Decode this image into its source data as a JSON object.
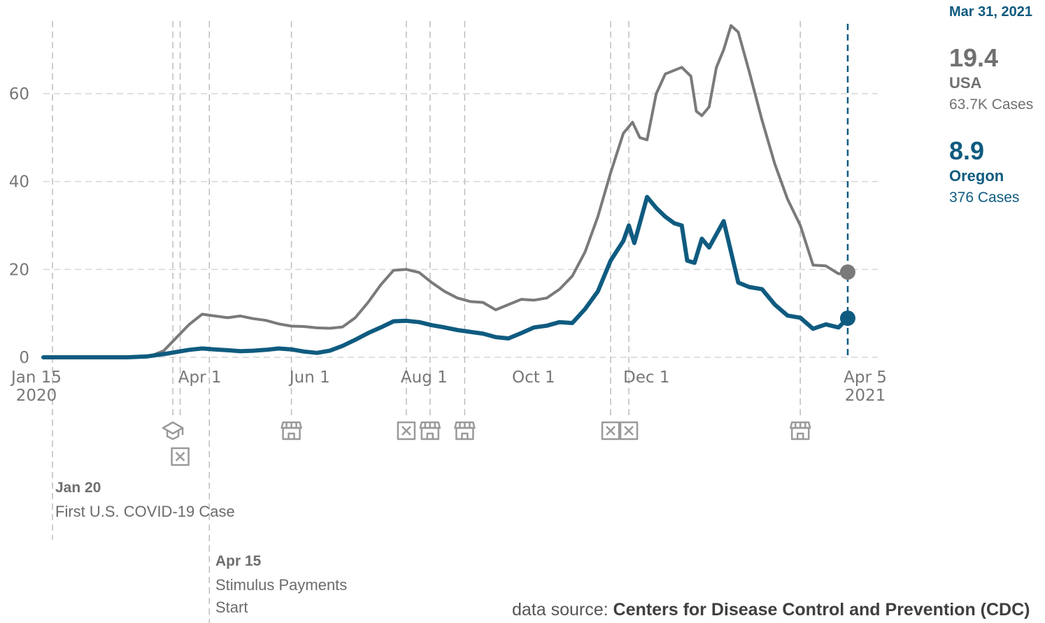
{
  "chart_data": {
    "type": "line",
    "x_axis": {
      "ticks": [
        {
          "date": "2020-01-15",
          "label": "Jan 15",
          "sub": "2020"
        },
        {
          "date": "2020-04-01",
          "label": "Apr 1",
          "sub": ""
        },
        {
          "date": "2020-06-01",
          "label": "Jun 1",
          "sub": ""
        },
        {
          "date": "2020-08-01",
          "label": "Aug 1",
          "sub": ""
        },
        {
          "date": "2020-10-01",
          "label": "Oct 1",
          "sub": ""
        },
        {
          "date": "2020-12-01",
          "label": "Dec 1",
          "sub": ""
        },
        {
          "date": "2021-04-05",
          "label": "Apr 5",
          "sub": "2021"
        }
      ],
      "range": [
        "2020-01-15",
        "2021-04-05"
      ]
    },
    "y_axis": {
      "ticks": [
        0,
        20,
        40,
        60
      ],
      "range": [
        0,
        76
      ]
    },
    "grid": "horizontal dashed",
    "series": [
      {
        "name": "USA",
        "color": "#7a7a7a",
        "points": [
          [
            "2020-01-15",
            0
          ],
          [
            "2020-03-01",
            0
          ],
          [
            "2020-03-14",
            0.3
          ],
          [
            "2020-03-21",
            1.5
          ],
          [
            "2020-03-28",
            4.5
          ],
          [
            "2020-04-04",
            7.5
          ],
          [
            "2020-04-11",
            9.8
          ],
          [
            "2020-04-18",
            9.4
          ],
          [
            "2020-04-25",
            9.0
          ],
          [
            "2020-05-02",
            9.4
          ],
          [
            "2020-05-09",
            8.8
          ],
          [
            "2020-05-16",
            8.4
          ],
          [
            "2020-05-23",
            7.6
          ],
          [
            "2020-05-30",
            7.1
          ],
          [
            "2020-06-06",
            7.0
          ],
          [
            "2020-06-13",
            6.7
          ],
          [
            "2020-06-20",
            6.6
          ],
          [
            "2020-06-27",
            6.9
          ],
          [
            "2020-07-04",
            9.0
          ],
          [
            "2020-07-11",
            12.5
          ],
          [
            "2020-07-18",
            16.5
          ],
          [
            "2020-07-25",
            19.8
          ],
          [
            "2020-08-01",
            20.0
          ],
          [
            "2020-08-08",
            19.3
          ],
          [
            "2020-08-15",
            17.0
          ],
          [
            "2020-08-22",
            15.0
          ],
          [
            "2020-08-29",
            13.5
          ],
          [
            "2020-09-05",
            12.7
          ],
          [
            "2020-09-12",
            12.5
          ],
          [
            "2020-09-19",
            10.8
          ],
          [
            "2020-09-26",
            12.0
          ],
          [
            "2020-10-03",
            13.2
          ],
          [
            "2020-10-10",
            13.0
          ],
          [
            "2020-10-17",
            13.5
          ],
          [
            "2020-10-24",
            15.5
          ],
          [
            "2020-10-31",
            18.5
          ],
          [
            "2020-11-07",
            24.0
          ],
          [
            "2020-11-14",
            32.0
          ],
          [
            "2020-11-21",
            42.0
          ],
          [
            "2020-11-28",
            51.0
          ],
          [
            "2020-12-03",
            53.5
          ],
          [
            "2020-12-07",
            50.0
          ],
          [
            "2020-12-11",
            49.5
          ],
          [
            "2020-12-16",
            60.0
          ],
          [
            "2020-12-21",
            64.5
          ],
          [
            "2020-12-30",
            66.0
          ],
          [
            "2021-01-04",
            64.0
          ],
          [
            "2021-01-07",
            56.0
          ],
          [
            "2021-01-10",
            55.0
          ],
          [
            "2021-01-14",
            57.0
          ],
          [
            "2021-01-18",
            66.0
          ],
          [
            "2021-01-22",
            70.0
          ],
          [
            "2021-01-26",
            75.5
          ],
          [
            "2021-01-30",
            74.0
          ],
          [
            "2021-02-05",
            65.0
          ],
          [
            "2021-02-12",
            54.0
          ],
          [
            "2021-02-19",
            44.0
          ],
          [
            "2021-02-26",
            36.0
          ],
          [
            "2021-03-05",
            30.0
          ],
          [
            "2021-03-12",
            21.0
          ],
          [
            "2021-03-19",
            20.8
          ],
          [
            "2021-03-26",
            19.0
          ],
          [
            "2021-03-31",
            19.4
          ]
        ]
      },
      {
        "name": "Oregon",
        "color": "#0f5b80",
        "points": [
          [
            "2020-01-15",
            0
          ],
          [
            "2020-03-01",
            0
          ],
          [
            "2020-03-12",
            0.2
          ],
          [
            "2020-03-22",
            0.8
          ],
          [
            "2020-04-04",
            1.7
          ],
          [
            "2020-04-11",
            2.0
          ],
          [
            "2020-04-18",
            1.8
          ],
          [
            "2020-04-25",
            1.6
          ],
          [
            "2020-05-02",
            1.4
          ],
          [
            "2020-05-09",
            1.5
          ],
          [
            "2020-05-16",
            1.7
          ],
          [
            "2020-05-23",
            2.0
          ],
          [
            "2020-05-30",
            1.8
          ],
          [
            "2020-06-06",
            1.3
          ],
          [
            "2020-06-13",
            1.0
          ],
          [
            "2020-06-20",
            1.5
          ],
          [
            "2020-06-27",
            2.6
          ],
          [
            "2020-07-04",
            4.0
          ],
          [
            "2020-07-11",
            5.5
          ],
          [
            "2020-07-18",
            6.8
          ],
          [
            "2020-07-25",
            8.2
          ],
          [
            "2020-08-01",
            8.3
          ],
          [
            "2020-08-08",
            8.0
          ],
          [
            "2020-08-15",
            7.3
          ],
          [
            "2020-08-22",
            6.8
          ],
          [
            "2020-08-29",
            6.2
          ],
          [
            "2020-09-05",
            5.8
          ],
          [
            "2020-09-12",
            5.4
          ],
          [
            "2020-09-19",
            4.6
          ],
          [
            "2020-09-26",
            4.3
          ],
          [
            "2020-10-03",
            5.5
          ],
          [
            "2020-10-10",
            6.8
          ],
          [
            "2020-10-17",
            7.2
          ],
          [
            "2020-10-24",
            8.0
          ],
          [
            "2020-10-31",
            7.8
          ],
          [
            "2020-11-07",
            11.0
          ],
          [
            "2020-11-14",
            15.0
          ],
          [
            "2020-11-21",
            22.0
          ],
          [
            "2020-11-28",
            26.5
          ],
          [
            "2020-12-01",
            30.0
          ],
          [
            "2020-12-04",
            26.0
          ],
          [
            "2020-12-08",
            32.0
          ],
          [
            "2020-12-11",
            36.5
          ],
          [
            "2020-12-16",
            34.0
          ],
          [
            "2020-12-21",
            32.0
          ],
          [
            "2020-12-26",
            30.5
          ],
          [
            "2020-12-30",
            30.0
          ],
          [
            "2021-01-02",
            22.0
          ],
          [
            "2021-01-06",
            21.5
          ],
          [
            "2021-01-10",
            27.0
          ],
          [
            "2021-01-14",
            25.0
          ],
          [
            "2021-01-18",
            28.0
          ],
          [
            "2021-01-22",
            31.0
          ],
          [
            "2021-01-26",
            24.0
          ],
          [
            "2021-01-30",
            17.0
          ],
          [
            "2021-02-05",
            16.0
          ],
          [
            "2021-02-12",
            15.5
          ],
          [
            "2021-02-19",
            12.0
          ],
          [
            "2021-02-26",
            9.5
          ],
          [
            "2021-03-05",
            9.0
          ],
          [
            "2021-03-12",
            6.5
          ],
          [
            "2021-03-19",
            7.5
          ],
          [
            "2021-03-26",
            6.8
          ],
          [
            "2021-03-31",
            8.9
          ]
        ]
      }
    ],
    "event_lines": [
      "2020-01-20",
      "2020-03-26",
      "2020-03-30",
      "2020-04-15",
      "2020-05-30",
      "2020-08-01",
      "2020-08-14",
      "2020-09-02",
      "2020-11-21",
      "2020-12-01",
      "2021-03-05"
    ],
    "markers": [
      {
        "date": "2020-03-26",
        "icon": "graduation-cap-icon",
        "row": 1
      },
      {
        "date": "2020-03-30",
        "icon": "crossed-box-icon",
        "row": 2
      },
      {
        "date": "2020-05-30",
        "icon": "storefront-icon",
        "row": 1
      },
      {
        "date": "2020-08-01",
        "icon": "crossed-box-icon",
        "row": 1
      },
      {
        "date": "2020-08-14",
        "icon": "storefront-icon",
        "row": 1
      },
      {
        "date": "2020-09-02",
        "icon": "storefront-icon",
        "row": 1
      },
      {
        "date": "2020-11-21",
        "icon": "crossed-box-icon",
        "row": 1
      },
      {
        "date": "2020-12-01",
        "icon": "crossed-box-icon",
        "row": 1
      },
      {
        "date": "2021-03-05",
        "icon": "storefront-icon",
        "row": 1
      }
    ],
    "current_line": "2021-03-31"
  },
  "sidebar": {
    "date": "Mar 31, 2021",
    "usa": {
      "value": "19.4",
      "name": "USA",
      "cases": "63.7K Cases",
      "color": "#7a7a7a"
    },
    "oregon": {
      "value": "8.9",
      "name": "Oregon",
      "cases": "376 Cases",
      "color": "#0f5b80"
    }
  },
  "annotations": {
    "first_case": {
      "date": "Jan 20",
      "text": "First U.S. COVID-19 Case"
    },
    "stimulus": {
      "date": "Apr 15",
      "line1": "Stimulus Payments",
      "line2": "Start"
    }
  },
  "source": {
    "prefix": "data source:",
    "name": "Centers for Disease Control and Prevention (CDC)"
  }
}
